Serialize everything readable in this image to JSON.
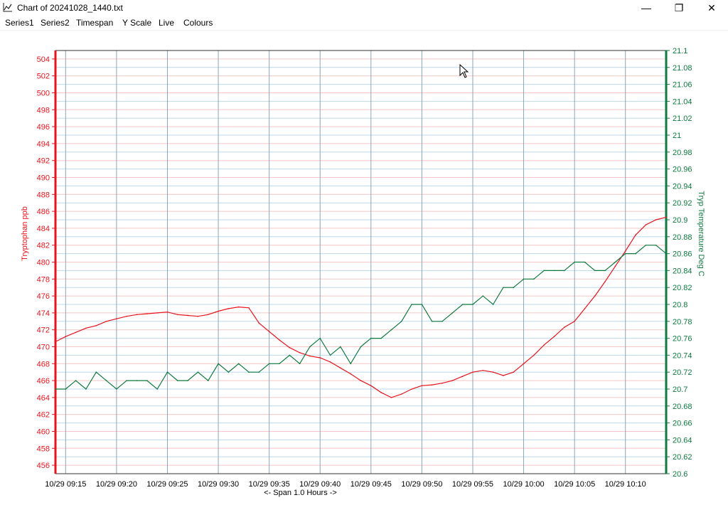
{
  "window": {
    "title": "Chart of 20241028_1440.txt",
    "minimize_glyph": "—",
    "maximize_glyph": "❐",
    "close_glyph": "✕",
    "app_icon": "line-chart-icon"
  },
  "menu": {
    "items": [
      {
        "label": "Series1"
      },
      {
        "label": "Series2"
      },
      {
        "label": "Timespan"
      },
      {
        "label": "Y Scale"
      },
      {
        "label": "Live"
      },
      {
        "label": "Colours"
      }
    ]
  },
  "colors": {
    "series1": "#e8141c",
    "series2": "#0d7a3e",
    "grid_red": "#f4c6c6",
    "grid_blue": "#bcdaf0",
    "vgrid": "#8aa6b8",
    "frame": "#333333"
  },
  "chart_data": {
    "type": "line",
    "ylabel": "Tryptophan ppb",
    "y2label": "Tryp Temperature Deg C",
    "xlabel": "<- Span 1.0 Hours ->",
    "ylim": [
      455,
      505
    ],
    "y2lim": [
      20.6,
      21.1
    ],
    "yticks": [
      "456",
      "458",
      "460",
      "462",
      "464",
      "466",
      "468",
      "470",
      "472",
      "474",
      "476",
      "478",
      "480",
      "482",
      "484",
      "486",
      "488",
      "490",
      "492",
      "494",
      "496",
      "498",
      "500",
      "502",
      "504"
    ],
    "y2ticks": [
      "20.6",
      "20.62",
      "20.64",
      "20.66",
      "20.68",
      "20.7",
      "20.72",
      "20.74",
      "20.76",
      "20.78",
      "20.8",
      "20.82",
      "20.84",
      "20.86",
      "20.88",
      "20.9",
      "20.92",
      "20.94",
      "20.96",
      "20.98",
      "21",
      "21.02",
      "21.04",
      "21.06",
      "21.08",
      "21.1"
    ],
    "xlim": [
      "10/29 09:14",
      "10/29 10:14"
    ],
    "xticks": [
      "10/29 09:15",
      "10/29 09:20",
      "10/29 09:25",
      "10/29 09:30",
      "10/29 09:35",
      "10/29 09:40",
      "10/29 09:45",
      "10/29 09:50",
      "10/29 09:55",
      "10/29 10:00",
      "10/29 10:05",
      "10/29 10:10"
    ],
    "grid": true,
    "series": [
      {
        "name": "Tryptophan ppb",
        "axis": "left",
        "x": [
          "09:14",
          "09:15",
          "09:16",
          "09:17",
          "09:18",
          "09:19",
          "09:20",
          "09:21",
          "09:22",
          "09:23",
          "09:24",
          "09:25",
          "09:26",
          "09:27",
          "09:28",
          "09:29",
          "09:30",
          "09:31",
          "09:32",
          "09:33",
          "09:34",
          "09:35",
          "09:36",
          "09:37",
          "09:38",
          "09:39",
          "09:40",
          "09:41",
          "09:42",
          "09:43",
          "09:44",
          "09:45",
          "09:46",
          "09:47",
          "09:48",
          "09:49",
          "09:50",
          "09:51",
          "09:52",
          "09:53",
          "09:54",
          "09:55",
          "09:56",
          "09:57",
          "09:58",
          "09:59",
          "10:00",
          "10:01",
          "10:02",
          "10:03",
          "10:04",
          "10:05",
          "10:06",
          "10:07",
          "10:08",
          "10:09",
          "10:10",
          "10:11",
          "10:12",
          "10:13",
          "10:14"
        ],
        "y": [
          470.6,
          471.2,
          471.7,
          472.2,
          472.5,
          473.0,
          473.3,
          473.6,
          473.8,
          473.9,
          474.0,
          474.1,
          473.8,
          473.7,
          473.6,
          473.8,
          474.2,
          474.5,
          474.7,
          474.6,
          472.8,
          471.8,
          470.8,
          469.9,
          469.3,
          468.9,
          468.7,
          468.2,
          467.5,
          466.8,
          466.0,
          465.4,
          464.6,
          464.0,
          464.4,
          465.0,
          465.4,
          465.5,
          465.7,
          466.0,
          466.5,
          467.0,
          467.2,
          467.0,
          466.6,
          467.0,
          468.0,
          469.0,
          470.2,
          471.2,
          472.3,
          473.0,
          474.5,
          476.0,
          477.7,
          479.5,
          481.3,
          483.2,
          484.4,
          485.0,
          485.3
        ],
        "y_range_note": ""
      },
      {
        "name": "Tryp Temperature Deg C",
        "axis": "right",
        "x": [
          "09:14",
          "09:15",
          "09:16",
          "09:17",
          "09:18",
          "09:19",
          "09:20",
          "09:21",
          "09:22",
          "09:23",
          "09:24",
          "09:25",
          "09:26",
          "09:27",
          "09:28",
          "09:29",
          "09:30",
          "09:31",
          "09:32",
          "09:33",
          "09:34",
          "09:35",
          "09:36",
          "09:37",
          "09:38",
          "09:39",
          "09:40",
          "09:41",
          "09:42",
          "09:43",
          "09:44",
          "09:45",
          "09:46",
          "09:47",
          "09:48",
          "09:49",
          "09:50",
          "09:51",
          "09:52",
          "09:53",
          "09:54",
          "09:55",
          "09:56",
          "09:57",
          "09:58",
          "09:59",
          "10:00",
          "10:01",
          "10:02",
          "10:03",
          "10:04",
          "10:05",
          "10:06",
          "10:07",
          "10:08",
          "10:09",
          "10:10",
          "10:11",
          "10:12",
          "10:13",
          "10:14"
        ],
        "y": [
          20.7,
          20.7,
          20.71,
          20.7,
          20.72,
          20.71,
          20.7,
          20.71,
          20.71,
          20.71,
          20.7,
          20.72,
          20.71,
          20.71,
          20.72,
          20.71,
          20.73,
          20.72,
          20.73,
          20.72,
          20.72,
          20.73,
          20.73,
          20.74,
          20.73,
          20.75,
          20.76,
          20.74,
          20.75,
          20.73,
          20.75,
          20.76,
          20.76,
          20.77,
          20.78,
          20.8,
          20.8,
          20.78,
          20.78,
          20.79,
          20.8,
          20.8,
          20.81,
          20.8,
          20.82,
          20.82,
          20.83,
          20.83,
          20.84,
          20.84,
          20.84,
          20.85,
          20.85,
          20.84,
          20.84,
          20.85,
          20.86,
          20.86,
          20.87,
          20.87,
          20.86
        ]
      }
    ]
  }
}
